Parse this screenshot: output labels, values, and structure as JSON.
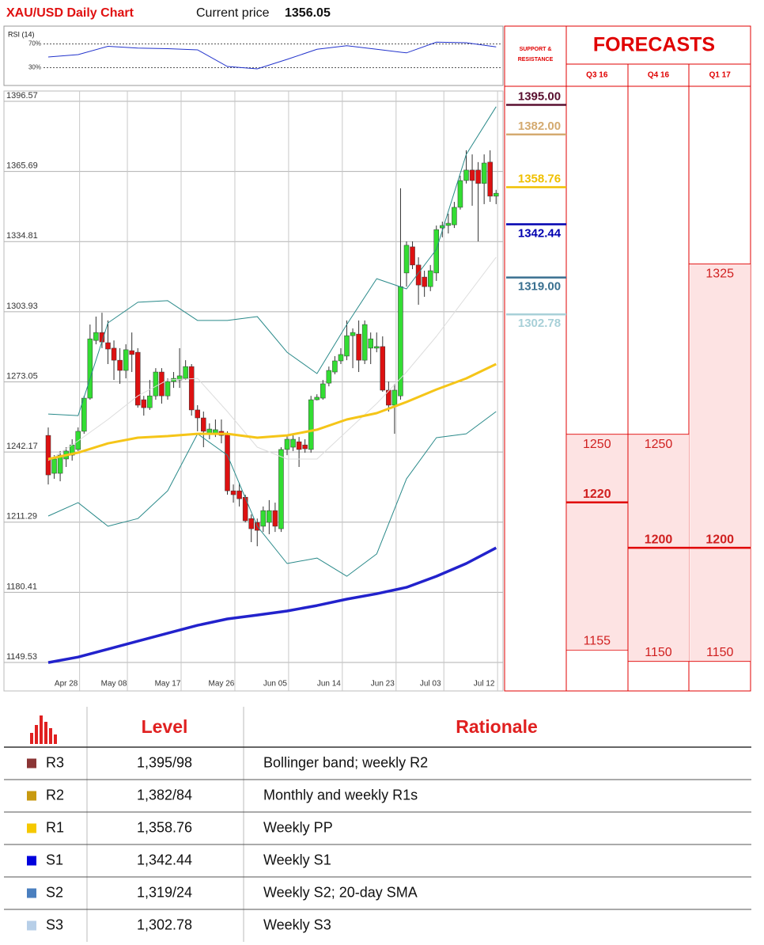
{
  "header": {
    "title": "XAU/USD Daily Chart",
    "price_label": "Current price",
    "price": 1356.05
  },
  "chart_data": [
    {
      "type": "line",
      "title": "RSI (14)",
      "x": [
        0,
        5,
        10,
        15,
        20,
        25,
        30,
        35,
        40,
        45,
        50,
        55,
        60,
        65,
        70,
        75
      ],
      "values": [
        48,
        52,
        66,
        63,
        62,
        60,
        32,
        28,
        44,
        61,
        67,
        61,
        55,
        73,
        72,
        65
      ],
      "color": "#2233cc",
      "ylim": [
        0,
        100
      ],
      "yticks": [
        {
          "value": 30,
          "label": "30%"
        },
        {
          "value": 70,
          "label": "70%"
        }
      ]
    },
    {
      "type": "candlestick",
      "categories": [
        null,
        null,
        null,
        "Apr 28",
        null,
        null,
        null,
        null,
        null,
        null,
        null,
        "May 08",
        null,
        null,
        null,
        null,
        null,
        null,
        null,
        null,
        "May 17",
        null,
        null,
        null,
        null,
        null,
        null,
        null,
        null,
        "May 26",
        null,
        null,
        null,
        null,
        null,
        null,
        null,
        null,
        "Jun 05",
        null,
        null,
        null,
        null,
        null,
        null,
        null,
        null,
        "Jun 14",
        null,
        null,
        null,
        null,
        null,
        null,
        null,
        null,
        "Jun 23",
        null,
        null,
        null,
        null,
        null,
        null,
        null,
        "Jul 03",
        null,
        null,
        null,
        null,
        null,
        null,
        null,
        null,
        "Jul 12",
        null,
        null
      ],
      "open": [
        1249.5,
        1232.8,
        1232.8,
        1239.1,
        1240.8,
        1243.3,
        1251.3,
        1265.9,
        1291.3,
        1294.8,
        1290.3,
        1287.9,
        1282.6,
        1278.1,
        1286.8,
        1286.1,
        1265.2,
        1261.7,
        1266.9,
        1277.4,
        1266.9,
        1273.2,
        1273.9,
        1274.6,
        1279.8,
        1260.7,
        1257.2,
        1250.2,
        1250.2,
        1251.3,
        1250.2,
        1225.1,
        1225.1,
        1222.3,
        1212.9,
        1211.2,
        1209.5,
        1211.2,
        1216.4,
        1208.4,
        1243.3,
        1244.3,
        1246.7,
        1245.3,
        1243.3,
        1265.2,
        1265.9,
        1272.5,
        1277.4,
        1282.3,
        1284.4,
        1293.4,
        1294.1,
        1282.6,
        1287.9,
        1287.9,
        1288.6,
        1269.4,
        1262.8,
        1266.9,
        1321.0,
        1332.5,
        1324.5,
        1319.2,
        1315.0,
        1321.0,
        1340.8,
        1341.9,
        1342.2,
        1349.9,
        1361.7,
        1366.3,
        1366.3,
        1360.4,
        1369.8,
        1354.8
      ],
      "close": [
        1232.1,
        1239.1,
        1240.8,
        1242.6,
        1245.3,
        1251.3,
        1265.9,
        1292.0,
        1294.8,
        1290.6,
        1287.5,
        1282.6,
        1278.1,
        1287.2,
        1285.1,
        1262.8,
        1261.7,
        1266.9,
        1277.4,
        1266.9,
        1273.2,
        1274.6,
        1275.7,
        1279.8,
        1260.7,
        1257.2,
        1251.3,
        1252.3,
        1252.0,
        1249.5,
        1225.1,
        1223.4,
        1221.6,
        1211.9,
        1208.4,
        1207.7,
        1216.4,
        1216.4,
        1209.5,
        1243.3,
        1247.8,
        1247.8,
        1243.3,
        1243.6,
        1265.2,
        1266.3,
        1272.2,
        1278.1,
        1282.3,
        1285.1,
        1293.4,
        1294.8,
        1282.6,
        1298.3,
        1292.0,
        1288.6,
        1269.4,
        1262.8,
        1269.4,
        1315.0,
        1333.2,
        1324.5,
        1315.7,
        1315.0,
        1322.0,
        1340.1,
        1341.9,
        1342.9,
        1349.9,
        1361.7,
        1366.3,
        1361.7,
        1360.4,
        1369.4,
        1354.8,
        1356.1
      ],
      "high": [
        1253.0,
        1240.8,
        1242.6,
        1244.3,
        1247.8,
        1253.0,
        1266.9,
        1298.3,
        1301.8,
        1303.5,
        1300.1,
        1291.3,
        1287.9,
        1289.6,
        1294.8,
        1287.9,
        1266.9,
        1273.9,
        1279.1,
        1279.1,
        1274.6,
        1277.4,
        1287.9,
        1282.6,
        1280.9,
        1262.8,
        1260.0,
        1254.8,
        1256.5,
        1256.5,
        1251.3,
        1227.9,
        1228.6,
        1223.4,
        1214.7,
        1212.9,
        1218.2,
        1221.0,
        1219.9,
        1244.3,
        1249.5,
        1250.2,
        1248.8,
        1247.8,
        1266.9,
        1267.6,
        1273.9,
        1279.8,
        1284.4,
        1287.9,
        1300.1,
        1296.6,
        1300.1,
        1300.1,
        1294.8,
        1294.8,
        1293.1,
        1273.2,
        1272.2,
        1358.3,
        1334.9,
        1334.9,
        1327.9,
        1322.0,
        1324.5,
        1341.9,
        1343.6,
        1347.1,
        1352.3,
        1363.8,
        1375.0,
        1373.2,
        1369.8,
        1373.2,
        1375.0,
        1357.6
      ],
      "low": [
        1227.9,
        1230.4,
        1229.3,
        1235.6,
        1238.4,
        1242.6,
        1250.2,
        1265.2,
        1289.6,
        1287.9,
        1280.9,
        1273.9,
        1272.2,
        1274.6,
        1277.4,
        1261.7,
        1258.2,
        1260.7,
        1265.2,
        1263.5,
        1265.2,
        1270.4,
        1270.4,
        1273.9,
        1258.2,
        1251.3,
        1244.3,
        1247.8,
        1248.8,
        1246.0,
        1223.4,
        1219.9,
        1218.2,
        1211.2,
        1202.5,
        1200.7,
        1207.0,
        1206.0,
        1207.0,
        1207.0,
        1240.8,
        1242.6,
        1235.6,
        1241.9,
        1241.9,
        1264.9,
        1265.2,
        1271.1,
        1276.4,
        1280.9,
        1282.6,
        1279.1,
        1277.4,
        1280.9,
        1280.9,
        1286.1,
        1268.7,
        1260.0,
        1250.2,
        1265.2,
        1315.0,
        1322.7,
        1307.0,
        1310.5,
        1313.0,
        1317.5,
        1336.7,
        1338.4,
        1340.8,
        1348.9,
        1360.4,
        1350.6,
        1334.9,
        1351.3,
        1352.3,
        1351.3
      ],
      "up_color": "#33dd33",
      "down_color": "#dd1111",
      "ylim": [
        1137,
        1401.1
      ],
      "yticks": [
        1149.53,
        1180.41,
        1211.29,
        1242.17,
        1273.05,
        1303.93,
        1334.81,
        1365.69,
        1396.57
      ],
      "grid": true,
      "series": [
        {
          "color": "#2a8a8a",
          "width": 1,
          "x": [
            0,
            5,
            10,
            15,
            20,
            25,
            30,
            35,
            40,
            45,
            50,
            55,
            60,
            65,
            70,
            75
          ],
          "values": [
            1258.9,
            1258.2,
            1299.0,
            1308.1,
            1308.8,
            1300.1,
            1300.1,
            1301.8,
            1286.1,
            1276.7,
            1298.3,
            1318.5,
            1314.0,
            1331.4,
            1373.2,
            1394.2
          ]
        },
        {
          "color": "#dddddd",
          "width": 1,
          "x": [
            0,
            5,
            10,
            15,
            20,
            25,
            30,
            35,
            40,
            45,
            50,
            55,
            60,
            65,
            70,
            75
          ],
          "values": [
            1238.4,
            1247.1,
            1256.5,
            1266.9,
            1273.9,
            1274.6,
            1260.0,
            1244.3,
            1239.1,
            1239.1,
            1251.3,
            1263.5,
            1277.4,
            1293.1,
            1310.5,
            1327.9
          ]
        },
        {
          "color": "#2a8a8a",
          "width": 1,
          "x": [
            0,
            5,
            10,
            15,
            20,
            25,
            30,
            35,
            40,
            45,
            50,
            55,
            60,
            65,
            70,
            75
          ],
          "values": [
            1214.0,
            1219.9,
            1209.5,
            1212.9,
            1225.1,
            1250.2,
            1240.8,
            1209.5,
            1193.1,
            1195.5,
            1187.5,
            1197.3,
            1230.4,
            1248.5,
            1250.2,
            1260.0
          ]
        },
        {
          "color": "#f5c518",
          "width": 3,
          "x": [
            0,
            5,
            10,
            15,
            20,
            25,
            30,
            35,
            40,
            45,
            50,
            55,
            60,
            65,
            70,
            75
          ],
          "values": [
            1239.1,
            1241.9,
            1246.0,
            1248.5,
            1249.2,
            1250.2,
            1250.2,
            1248.5,
            1249.5,
            1252.0,
            1256.5,
            1259.3,
            1264.2,
            1269.7,
            1274.6,
            1280.9
          ]
        },
        {
          "color": "#2222cc",
          "width": 3.5,
          "x": [
            0,
            5,
            10,
            15,
            20,
            25,
            30,
            35,
            40,
            45,
            50,
            55,
            60,
            65,
            70,
            75
          ],
          "values": [
            1149.5,
            1151.9,
            1155.4,
            1158.9,
            1162.4,
            1165.9,
            1168.7,
            1170.4,
            1172.2,
            1174.6,
            1177.4,
            1179.8,
            1182.6,
            1187.5,
            1193.1,
            1200.0
          ]
        }
      ],
      "levels": {
        "title": [
          "SUPPORT &",
          "RESISTANCE"
        ],
        "values": [
          1395,
          1382,
          1358.76,
          1342.44,
          1319,
          1302.78
        ],
        "value_labels": [
          "1395.00",
          "1382.00",
          "1358.76",
          "1342.44",
          "1319.00",
          "1302.78"
        ],
        "colors": [
          "#5a1030",
          "#d4aa70",
          "#f0c000",
          "#0000b0",
          "#3a7090",
          "#a8d0d8"
        ]
      }
    },
    {
      "type": "range",
      "title": "FORECASTS",
      "categories": [
        "Q3 16",
        "Q4 16",
        "Q1 17"
      ],
      "high": [
        1250,
        1250,
        1325
      ],
      "mid": [
        1220,
        1200,
        1200
      ],
      "low": [
        1155,
        1150,
        1150
      ],
      "color": "#e00000",
      "fill": "#fde3e3"
    }
  ],
  "table": {
    "headers": [
      "Level",
      "Rationale"
    ],
    "rows": [
      [
        "R3",
        "1,395/98",
        "Bollinger band; weekly R2"
      ],
      [
        "R2",
        "1,382/84",
        "Monthly and weekly R1s"
      ],
      [
        "R1",
        "1,358.76",
        "Weekly PP"
      ],
      [
        "S1",
        "1,342.44",
        "Weekly S1"
      ],
      [
        "S2",
        "1,319/24",
        "Weekly S2; 20-day SMA"
      ],
      [
        "S3",
        "1,302.78",
        "Weekly S3"
      ]
    ],
    "colors": [
      "#8b3535",
      "#c89a10",
      "#f5c800",
      "#0000dd",
      "#4a7fbf",
      "#b7cfe8"
    ]
  }
}
